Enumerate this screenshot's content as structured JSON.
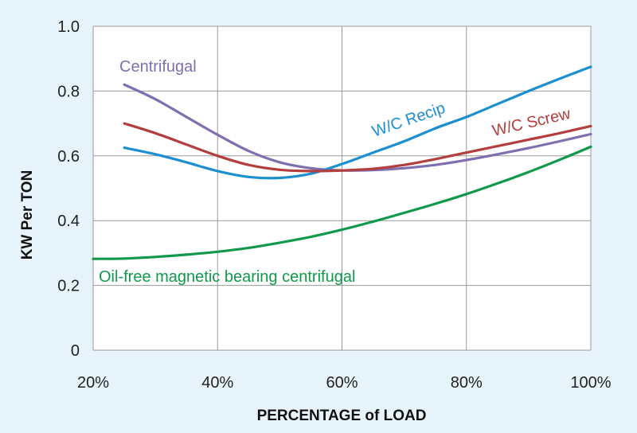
{
  "chart_data": {
    "type": "line",
    "title": "",
    "xlabel": "PERCENTAGE of LOAD",
    "ylabel": "KW Per TON",
    "xlim": [
      20,
      100
    ],
    "ylim": [
      0,
      1.0
    ],
    "x_ticks": [
      20,
      40,
      60,
      80,
      100
    ],
    "x_tick_labels": [
      "20%",
      "40%",
      "60%",
      "80%",
      "100%"
    ],
    "y_ticks": [
      0,
      0.2,
      0.4,
      0.6,
      0.8,
      1.0
    ],
    "y_tick_labels": [
      "0",
      "0.2",
      "0.4",
      "0.6",
      "0.8",
      "1.0"
    ],
    "grid": true,
    "legend": "inline labels",
    "series": [
      {
        "name": "Centrifugal",
        "color": "#7f6fb0",
        "x": [
          25,
          30,
          35,
          40,
          45,
          50,
          55,
          60,
          65,
          70,
          75,
          80,
          85,
          90,
          95,
          100
        ],
        "y": [
          0.82,
          0.775,
          0.72,
          0.665,
          0.615,
          0.58,
          0.562,
          0.555,
          0.556,
          0.562,
          0.572,
          0.587,
          0.605,
          0.624,
          0.645,
          0.667
        ]
      },
      {
        "name": "W/C Recip",
        "color": "#1b8fcf",
        "x": [
          25,
          30,
          35,
          40,
          45,
          50,
          55,
          60,
          65,
          70,
          75,
          80,
          85,
          90,
          95,
          100
        ],
        "y": [
          0.625,
          0.605,
          0.58,
          0.553,
          0.535,
          0.532,
          0.545,
          0.575,
          0.61,
          0.645,
          0.685,
          0.72,
          0.76,
          0.8,
          0.838,
          0.875
        ]
      },
      {
        "name": "W/C Screw",
        "color": "#b23e3e",
        "x": [
          25,
          30,
          35,
          40,
          45,
          50,
          55,
          60,
          65,
          70,
          75,
          80,
          85,
          90,
          95,
          100
        ],
        "y": [
          0.7,
          0.67,
          0.635,
          0.6,
          0.572,
          0.557,
          0.553,
          0.555,
          0.56,
          0.572,
          0.59,
          0.61,
          0.63,
          0.65,
          0.67,
          0.692
        ]
      },
      {
        "name": "Oil-free magnetic bearing centrifugal",
        "color": "#10994a",
        "x": [
          20,
          25,
          30,
          35,
          40,
          45,
          50,
          55,
          60,
          65,
          70,
          75,
          80,
          85,
          90,
          95,
          100
        ],
        "y": [
          0.282,
          0.283,
          0.288,
          0.295,
          0.304,
          0.316,
          0.332,
          0.35,
          0.372,
          0.397,
          0.424,
          0.452,
          0.482,
          0.515,
          0.55,
          0.588,
          0.628
        ]
      }
    ]
  }
}
